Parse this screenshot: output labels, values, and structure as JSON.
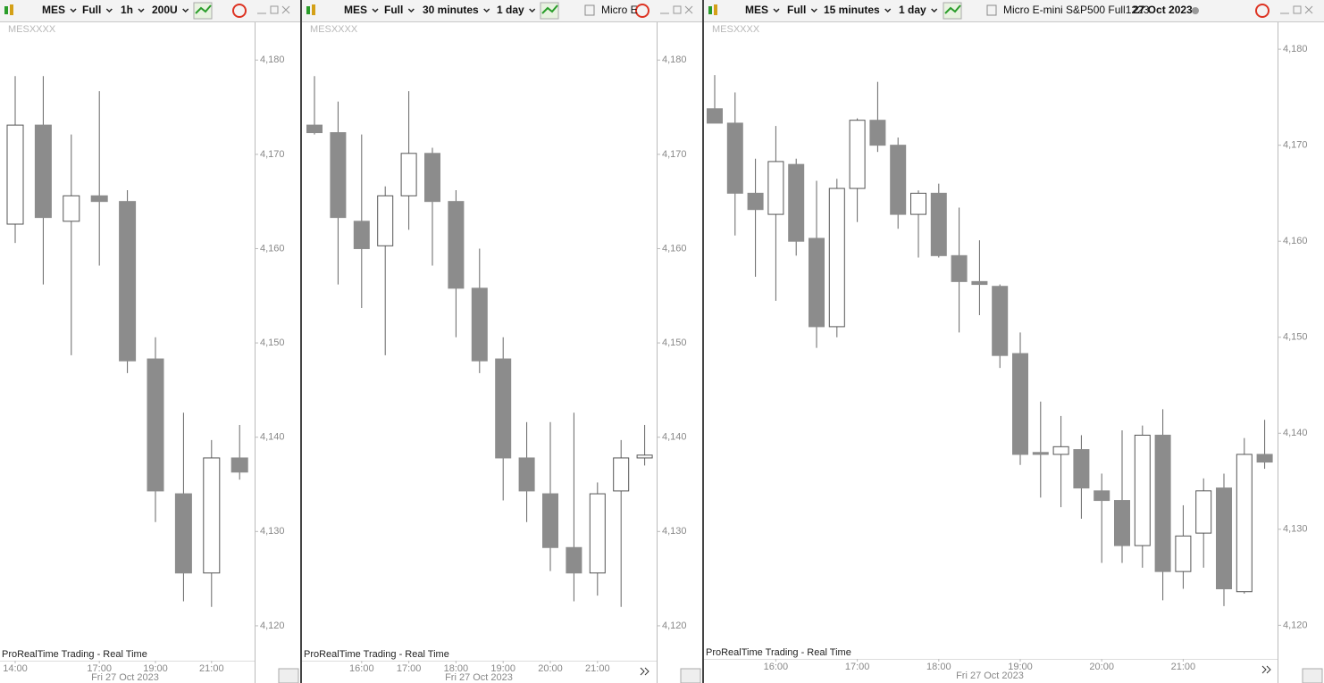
{
  "chart_data": [
    {
      "type": "candlestick",
      "toolbar": {
        "symbol": "MES",
        "style": "Full",
        "timeframe": "1h",
        "units": "200U"
      },
      "watermark": "MESXXXX",
      "footer": "ProRealTime Trading - Real Time",
      "date_label": "Fri 27 Oct 2023",
      "categories": [
        "14:00",
        null,
        null,
        "17:00",
        null,
        "19:00",
        null,
        "21:00",
        null
      ],
      "open": [
        4162.6,
        4173.1,
        4162.9,
        4165.6,
        4165.0,
        4148.3,
        4134.0,
        4125.6,
        4137.8
      ],
      "high": [
        4178.3,
        4178.3,
        4172.1,
        4176.7,
        4166.2,
        4150.6,
        4142.6,
        4139.7,
        4141.3
      ],
      "low": [
        4160.6,
        4156.2,
        4148.7,
        4158.2,
        4146.8,
        4131.0,
        4122.6,
        4122.0,
        4135.5
      ],
      "close": [
        4173.1,
        4163.3,
        4165.6,
        4165.0,
        4148.1,
        4134.3,
        4125.6,
        4137.8,
        4136.3
      ],
      "up_color": "#ffffff",
      "down_color": "#8c8c8c",
      "ylim": [
        4116.3,
        4184.0
      ],
      "yticks": [
        {
          "value": 4120,
          "label": "4,120"
        },
        {
          "value": 4130,
          "label": "4,130"
        },
        {
          "value": 4140,
          "label": "4,140"
        },
        {
          "value": 4150,
          "label": "4,150"
        },
        {
          "value": 4160,
          "label": "4,160"
        },
        {
          "value": 4170,
          "label": "4,170"
        },
        {
          "value": 4180,
          "label": "4,180"
        }
      ]
    },
    {
      "type": "candlestick",
      "toolbar": {
        "symbol": "MES",
        "style": "Full",
        "timeframe": "30 minutes",
        "range": "1 day",
        "instrument": "Micro E"
      },
      "watermark": "MESXXXX",
      "footer": "ProRealTime Trading - Real Time",
      "date_label": "Fri 27 Oct 2023",
      "categories": [
        null,
        null,
        "16:00",
        null,
        "17:00",
        null,
        "18:00",
        null,
        "19:00",
        null,
        "20:00",
        null,
        "21:00",
        null,
        null
      ],
      "open": [
        4173.1,
        4172.3,
        4162.9,
        4160.3,
        4165.6,
        4170.1,
        4165.0,
        4155.8,
        4148.3,
        4137.8,
        4134.0,
        4128.3,
        4125.6,
        4134.3,
        4137.8
      ],
      "high": [
        4178.3,
        4175.6,
        4172.1,
        4166.6,
        4176.7,
        4170.7,
        4166.2,
        4160.0,
        4150.6,
        4141.6,
        4141.6,
        4142.6,
        4135.2,
        4139.7,
        4141.3
      ],
      "low": [
        4172.1,
        4156.2,
        4153.7,
        4148.7,
        4162.0,
        4158.2,
        4150.6,
        4146.8,
        4133.3,
        4131.0,
        4125.8,
        4122.6,
        4123.2,
        4122.0,
        4137.0
      ],
      "close": [
        4172.3,
        4163.3,
        4160.0,
        4165.6,
        4170.1,
        4165.0,
        4155.8,
        4148.1,
        4137.8,
        4134.3,
        4128.3,
        4125.6,
        4134.0,
        4137.8,
        4138.1
      ],
      "up_color": "#ffffff",
      "down_color": "#8c8c8c",
      "ylim": [
        4116.3,
        4184.0
      ],
      "yticks": [
        {
          "value": 4120,
          "label": "4,120"
        },
        {
          "value": 4130,
          "label": "4,130"
        },
        {
          "value": 4140,
          "label": "4,140"
        },
        {
          "value": 4150,
          "label": "4,150"
        },
        {
          "value": 4160,
          "label": "4,160"
        },
        {
          "value": 4170,
          "label": "4,170"
        },
        {
          "value": 4180,
          "label": "4,180"
        }
      ]
    },
    {
      "type": "candlestick",
      "toolbar": {
        "symbol": "MES",
        "style": "Full",
        "timeframe": "15 minutes",
        "range": "1 day",
        "instrument": "Micro E-mini S&P500 Full1223",
        "date": "27 Oct 2023"
      },
      "watermark": "MESXXXX",
      "footer": "ProRealTime Trading - Real Time",
      "date_label": "Fri 27 Oct 2023",
      "categories": [
        null,
        null,
        null,
        "16:00",
        null,
        null,
        null,
        "17:00",
        null,
        null,
        null,
        "18:00",
        null,
        null,
        null,
        "19:00",
        null,
        null,
        null,
        "20:00",
        null,
        null,
        null,
        "21:00",
        null,
        null,
        null,
        null
      ],
      "open": [
        4173.8,
        4172.3,
        4165.0,
        4162.8,
        4168.0,
        4160.3,
        4151.1,
        4165.5,
        4172.6,
        4170.0,
        4162.8,
        4165.0,
        4158.5,
        4155.8,
        4155.3,
        4148.3,
        4138.0,
        4137.8,
        4138.3,
        4134.0,
        4133.0,
        4128.3,
        4139.8,
        4125.6,
        4129.6,
        4134.3,
        4123.5,
        4137.8
      ],
      "high": [
        4177.3,
        4175.5,
        4168.6,
        4172.0,
        4168.6,
        4166.3,
        4166.5,
        4172.8,
        4176.6,
        4170.8,
        4165.3,
        4166.0,
        4163.5,
        4160.1,
        4155.5,
        4150.5,
        4143.3,
        4141.8,
        4139.8,
        4135.8,
        4140.3,
        4140.8,
        4142.5,
        4132.5,
        4135.3,
        4135.8,
        4139.5,
        4141.4
      ],
      "low": [
        4172.3,
        4160.6,
        4156.3,
        4153.8,
        4158.5,
        4148.9,
        4150.0,
        4162.0,
        4169.3,
        4161.3,
        4158.3,
        4158.3,
        4150.5,
        4152.3,
        4146.8,
        4136.7,
        4133.3,
        4132.3,
        4131.1,
        4126.5,
        4126.5,
        4126.0,
        4122.6,
        4123.8,
        4126.0,
        4122.0,
        4123.3,
        4136.3
      ],
      "close": [
        4172.3,
        4165.0,
        4163.3,
        4168.3,
        4160.0,
        4151.1,
        4165.5,
        4172.6,
        4170.0,
        4162.8,
        4165.0,
        4158.5,
        4155.8,
        4155.5,
        4148.1,
        4137.8,
        4137.8,
        4138.6,
        4134.3,
        4133.0,
        4128.3,
        4139.8,
        4125.6,
        4129.3,
        4134.0,
        4123.8,
        4137.8,
        4137.0
      ],
      "up_color": "#ffffff",
      "down_color": "#8c8c8c",
      "ylim": [
        4116.5,
        4182.8
      ],
      "yticks": [
        {
          "value": 4120,
          "label": "4,120"
        },
        {
          "value": 4130,
          "label": "4,130"
        },
        {
          "value": 4140,
          "label": "4,140"
        },
        {
          "value": 4150,
          "label": "4,150"
        },
        {
          "value": 4160,
          "label": "4,160"
        },
        {
          "value": 4170,
          "label": "4,170"
        },
        {
          "value": 4180,
          "label": "4,180"
        }
      ]
    }
  ]
}
